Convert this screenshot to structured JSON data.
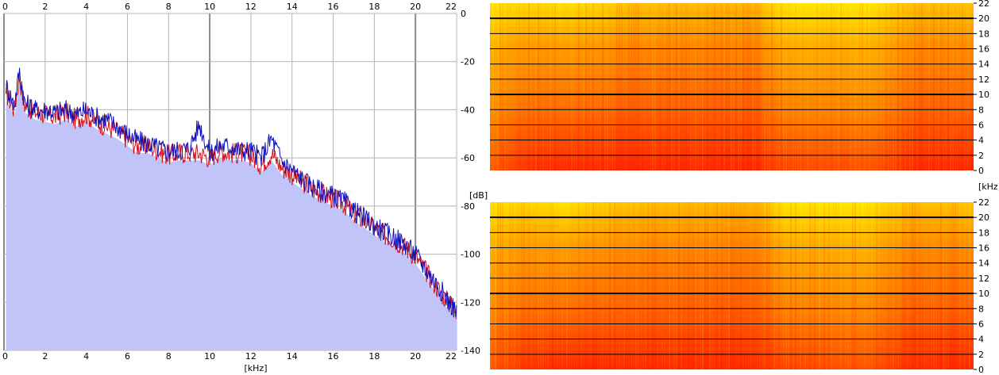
{
  "colors": {
    "background": "#ffffff",
    "spectrum_fill": "#c0c4f8",
    "channel_left": "#d0101c",
    "channel_right": "#1010b8",
    "grid": "#b4b4b4",
    "spectrogram_high": "#ff2a00",
    "spectrogram_mid": "#ff8a00",
    "spectrogram_low": "#ffe600"
  },
  "chart_data": [
    {
      "type": "line",
      "xlabel": "[kHz]",
      "ylabel": "[dB]",
      "xlim": [
        0,
        22
      ],
      "ylim": [
        -140,
        0
      ],
      "x_ticks": [
        0,
        2,
        4,
        6,
        8,
        10,
        12,
        14,
        16,
        18,
        20,
        22
      ],
      "x_tick_labels": [
        "0",
        "2",
        "4",
        "6",
        "8",
        "10",
        "12",
        "14",
        "16",
        "18",
        "20",
        "22"
      ],
      "y_ticks": [
        0,
        -20,
        -40,
        -60,
        -80,
        -100,
        -120,
        -140
      ],
      "y_tick_labels": [
        "0",
        "-20",
        "-40",
        "-60",
        "-80",
        "-100",
        "-120",
        "-140"
      ],
      "grid": true,
      "series": [
        {
          "x": [
            0.1,
            0.5,
            0.75,
            1,
            1.5,
            2,
            2.5,
            3,
            3.5,
            4,
            4.5,
            5,
            5.5,
            6,
            6.5,
            7,
            7.5,
            8,
            8.5,
            9,
            9.5,
            10,
            10.5,
            11,
            11.5,
            12,
            12.5,
            13,
            13.5,
            14,
            14.5,
            15,
            15.5,
            16,
            16.5,
            17,
            17.5,
            18,
            18.5,
            19,
            19.5,
            20,
            20.5,
            21,
            21.5,
            22
          ],
          "values": [
            -33,
            -40,
            -26,
            -38,
            -41,
            -42,
            -43,
            -41,
            -44,
            -42,
            -45,
            -47,
            -49,
            -52,
            -55,
            -55,
            -57,
            -59,
            -58,
            -58,
            -58,
            -60,
            -57,
            -58,
            -58,
            -59,
            -63,
            -58,
            -64,
            -67,
            -70,
            -73,
            -75,
            -77,
            -79,
            -83,
            -86,
            -89,
            -92,
            -94,
            -97,
            -101,
            -107,
            -113,
            -119,
            -123
          ]
        },
        {
          "x": [
            0.1,
            0.5,
            0.75,
            1,
            1.5,
            2,
            2.5,
            3,
            3.5,
            4,
            4.5,
            5,
            5.5,
            6,
            6.5,
            7,
            7.5,
            8,
            8.5,
            9,
            9.5,
            10,
            10.5,
            11,
            11.5,
            12,
            12.5,
            13,
            13.5,
            14,
            14.5,
            15,
            15.5,
            16,
            16.5,
            17,
            17.5,
            18,
            18.5,
            19,
            19.5,
            20,
            20.5,
            21,
            21.5,
            22
          ],
          "values": [
            -30,
            -38,
            -24,
            -37,
            -40,
            -40,
            -41,
            -40,
            -42,
            -40,
            -43,
            -44,
            -47,
            -50,
            -53,
            -54,
            -56,
            -57,
            -57,
            -56,
            -46,
            -58,
            -55,
            -55,
            -57,
            -57,
            -60,
            -52,
            -61,
            -65,
            -69,
            -72,
            -74,
            -76,
            -78,
            -82,
            -85,
            -88,
            -91,
            -93,
            -96,
            -100,
            -106,
            -112,
            -118,
            -124
          ]
        }
      ]
    },
    {
      "type": "heatmap",
      "ylabel": "[kHz]",
      "ylim": [
        0,
        22
      ],
      "y_ticks": [
        0,
        2,
        4,
        6,
        8,
        10,
        12,
        14,
        16,
        18,
        20,
        22
      ],
      "y_tick_labels": [
        "0",
        "2",
        "4",
        "6",
        "8",
        "10",
        "12",
        "14",
        "16",
        "18",
        "20",
        "22"
      ],
      "bold_lines_khz": [
        10,
        20
      ]
    },
    {
      "type": "heatmap",
      "ylim": [
        0,
        22
      ],
      "y_ticks": [
        0,
        2,
        4,
        6,
        8,
        10,
        12,
        14,
        16,
        18,
        20,
        22
      ],
      "y_tick_labels": [
        "0",
        "2",
        "4",
        "6",
        "8",
        "10",
        "12",
        "14",
        "16",
        "18",
        "20",
        "22"
      ],
      "bold_lines_khz": [
        10,
        20
      ]
    }
  ]
}
